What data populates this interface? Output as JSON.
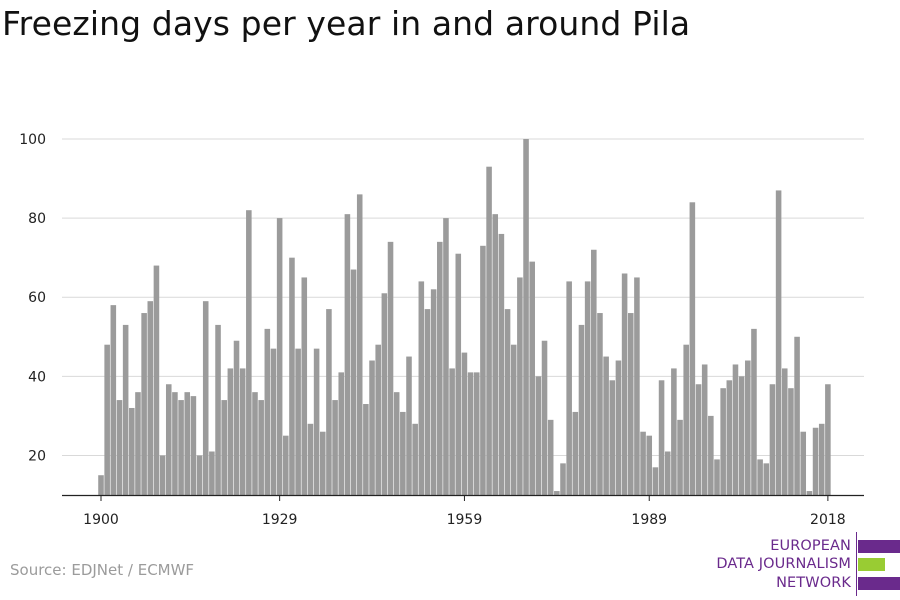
{
  "title": "Freezing days per year in and around Pila",
  "source": "Source: EDJNet / ECMWF",
  "logo": {
    "lines": [
      "EUROPEAN",
      "DATA JOURNALISM",
      "NETWORK"
    ],
    "colors": {
      "purple": "#6a2a8c",
      "green": "#99cc33"
    }
  },
  "colors": {
    "bar": "#9b9b9b",
    "grid": "#d9d9d9",
    "axis": "#222222"
  },
  "chart_data": {
    "type": "bar",
    "title": "Freezing days per year in and around Pila",
    "xlabel": "",
    "ylabel": "",
    "ylim": [
      10,
      100
    ],
    "yticks": [
      20,
      40,
      60,
      80,
      100
    ],
    "xticks": [
      1900,
      1929,
      1959,
      1989,
      2018
    ],
    "grid": true,
    "x": [
      1900,
      1901,
      1902,
      1903,
      1904,
      1905,
      1906,
      1907,
      1908,
      1909,
      1910,
      1911,
      1912,
      1913,
      1914,
      1915,
      1916,
      1917,
      1918,
      1919,
      1920,
      1921,
      1922,
      1923,
      1924,
      1925,
      1926,
      1927,
      1928,
      1929,
      1930,
      1931,
      1932,
      1933,
      1934,
      1935,
      1936,
      1937,
      1938,
      1939,
      1940,
      1941,
      1942,
      1943,
      1944,
      1945,
      1946,
      1947,
      1948,
      1949,
      1950,
      1951,
      1952,
      1953,
      1954,
      1955,
      1956,
      1957,
      1958,
      1959,
      1960,
      1961,
      1962,
      1963,
      1964,
      1965,
      1966,
      1967,
      1968,
      1969,
      1970,
      1971,
      1972,
      1973,
      1974,
      1975,
      1976,
      1977,
      1978,
      1979,
      1980,
      1981,
      1982,
      1983,
      1984,
      1985,
      1986,
      1987,
      1988,
      1989,
      1990,
      1991,
      1992,
      1993,
      1994,
      1995,
      1996,
      1997,
      1998,
      1999,
      2000,
      2001,
      2002,
      2003,
      2004,
      2005,
      2006,
      2007,
      2008,
      2009,
      2010,
      2011,
      2012,
      2013,
      2014,
      2015,
      2016,
      2017,
      2018
    ],
    "values": [
      15,
      48,
      58,
      34,
      53,
      32,
      36,
      56,
      59,
      68,
      20,
      38,
      36,
      34,
      36,
      35,
      20,
      59,
      21,
      53,
      34,
      42,
      49,
      42,
      82,
      36,
      34,
      52,
      47,
      80,
      25,
      70,
      47,
      65,
      28,
      47,
      26,
      57,
      34,
      41,
      81,
      67,
      86,
      33,
      44,
      48,
      61,
      74,
      36,
      31,
      45,
      28,
      64,
      57,
      62,
      74,
      80,
      42,
      71,
      46,
      41,
      41,
      73,
      93,
      81,
      76,
      57,
      48,
      65,
      100,
      69,
      40,
      49,
      29,
      11,
      18,
      64,
      31,
      53,
      64,
      72,
      56,
      45,
      39,
      44,
      66,
      56,
      65,
      26,
      25,
      17,
      39,
      21,
      42,
      29,
      48,
      84,
      38,
      43,
      30,
      19,
      37,
      39,
      43,
      40,
      44,
      52,
      19,
      18,
      38,
      87,
      42,
      37,
      50,
      26,
      11,
      27,
      28,
      38
    ]
  }
}
